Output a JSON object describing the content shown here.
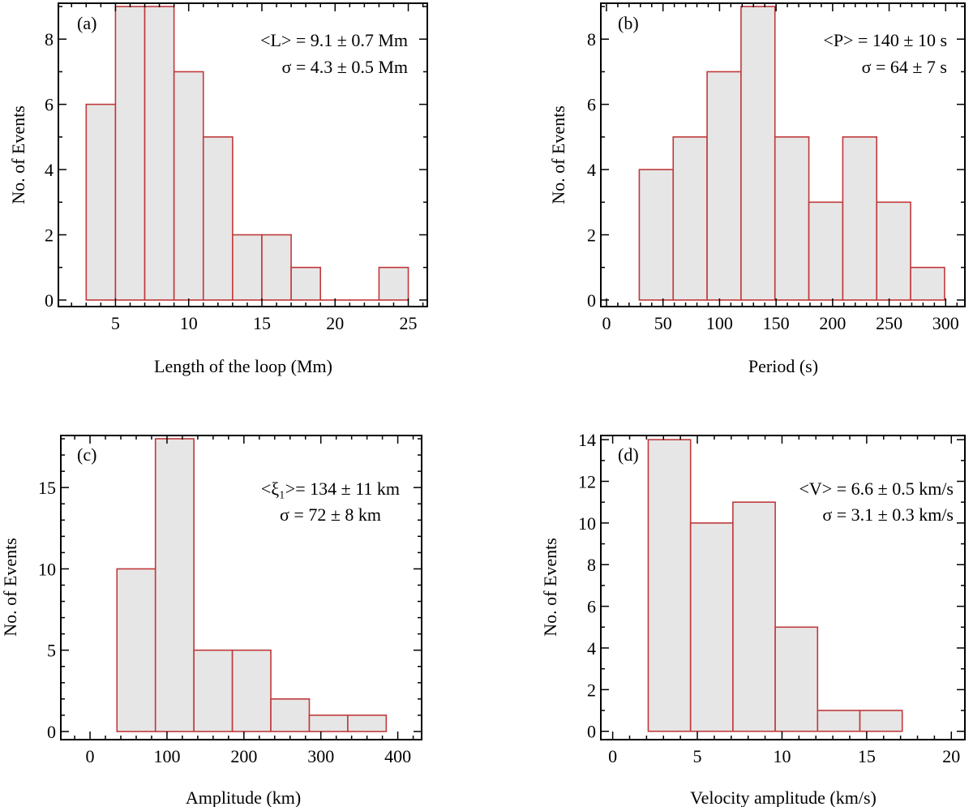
{
  "figure": {
    "background_color": "#ffffff",
    "bar_fill_color": "#e6e6e6",
    "bar_edge_color": "#c0393b"
  },
  "chart_data": [
    {
      "type": "bar",
      "panel_label": "(a)",
      "xlabel": "Length of the loop (Mm)",
      "ylabel": "No. of Events",
      "xlim": [
        1.1,
        26.3
      ],
      "ylim": [
        -0.2,
        9.1
      ],
      "xticks": [
        5,
        10,
        15,
        20,
        25
      ],
      "xtick_labels": [
        "5",
        "10",
        "15",
        "20",
        "25"
      ],
      "xminor_step": 1,
      "yticks": [
        0,
        2,
        4,
        6,
        8
      ],
      "ytick_labels": [
        "0",
        "2",
        "4",
        "6",
        "8"
      ],
      "yminor_step": 1,
      "bin_edges": [
        3,
        5,
        7,
        9,
        11,
        13,
        15,
        17,
        19,
        21,
        23,
        25
      ],
      "counts": [
        6,
        9,
        9,
        7,
        5,
        2,
        2,
        1,
        0,
        0,
        1
      ],
      "annotations": [
        {
          "mean_label": "<L> = 9.1 ± 0.7 Mm"
        },
        {
          "sigma_label": "σ = 4.3 ± 0.5 Mm"
        }
      ]
    },
    {
      "type": "bar",
      "panel_label": "(b)",
      "xlabel": "Period (s)",
      "ylabel": "No. of Events",
      "xlim": [
        -5,
        317
      ],
      "ylim": [
        -0.2,
        9.1
      ],
      "xticks": [
        0,
        50,
        100,
        150,
        200,
        250,
        300
      ],
      "xtick_labels": [
        "0",
        "50",
        "100",
        "150",
        "200",
        "250",
        "300"
      ],
      "xminor_step": 10,
      "yticks": [
        0,
        2,
        4,
        6,
        8
      ],
      "ytick_labels": [
        "0",
        "2",
        "4",
        "6",
        "8"
      ],
      "yminor_step": 1,
      "bin_edges": [
        29,
        59,
        89,
        119,
        149,
        179,
        209,
        239,
        269,
        299
      ],
      "counts": [
        4,
        5,
        7,
        9,
        5,
        3,
        5,
        3,
        1
      ],
      "annotations": [
        {
          "mean_label": "<P> = 140 ± 10 s"
        },
        {
          "sigma_label": "σ = 64 ± 7 s"
        }
      ]
    },
    {
      "type": "bar",
      "panel_label": "(c)",
      "xlabel": "Amplitude (km)",
      "ylabel": "No. of Events",
      "xlim": [
        -38,
        431
      ],
      "ylim": [
        -0.5,
        18.2
      ],
      "xticks": [
        0,
        100,
        200,
        300,
        400
      ],
      "xtick_labels": [
        "0",
        "100",
        "200",
        "300",
        "400"
      ],
      "xminor_step": 20,
      "yticks": [
        0,
        5,
        10,
        15
      ],
      "ytick_labels": [
        "0",
        "5",
        "10",
        "15"
      ],
      "yminor_step": 1,
      "bin_edges": [
        35,
        85,
        135,
        185,
        235,
        285,
        335,
        385
      ],
      "counts": [
        10,
        18,
        5,
        5,
        2,
        1,
        1
      ],
      "annotations": [
        {
          "mean_label": "<ξ₁>= 134 ± 11 km"
        },
        {
          "sigma_label": "σ = 72 ± 8 km"
        }
      ]
    },
    {
      "type": "bar",
      "panel_label": "(d)",
      "xlabel": "Velocity amplitude (km/s)",
      "ylabel": "No. of Events",
      "xlim": [
        -0.7,
        20.8
      ],
      "ylim": [
        -0.4,
        14.2
      ],
      "xticks": [
        0,
        5,
        10,
        15,
        20
      ],
      "xtick_labels": [
        "0",
        "5",
        "10",
        "15",
        "20"
      ],
      "xminor_step": 1,
      "yticks": [
        0,
        2,
        4,
        6,
        8,
        10,
        12,
        14
      ],
      "ytick_labels": [
        "0",
        "2",
        "4",
        "6",
        "8",
        "10",
        "12",
        "14"
      ],
      "yminor_step": 1,
      "bin_edges": [
        2.1,
        4.6,
        7.1,
        9.6,
        12.1,
        14.6,
        17.1
      ],
      "counts": [
        14,
        10,
        11,
        5,
        1,
        1
      ],
      "annotations": [
        {
          "mean_label": "<V> = 6.6 ± 0.5 km/s"
        },
        {
          "sigma_label": "σ = 3.1 ± 0.3 km/s"
        }
      ]
    }
  ]
}
